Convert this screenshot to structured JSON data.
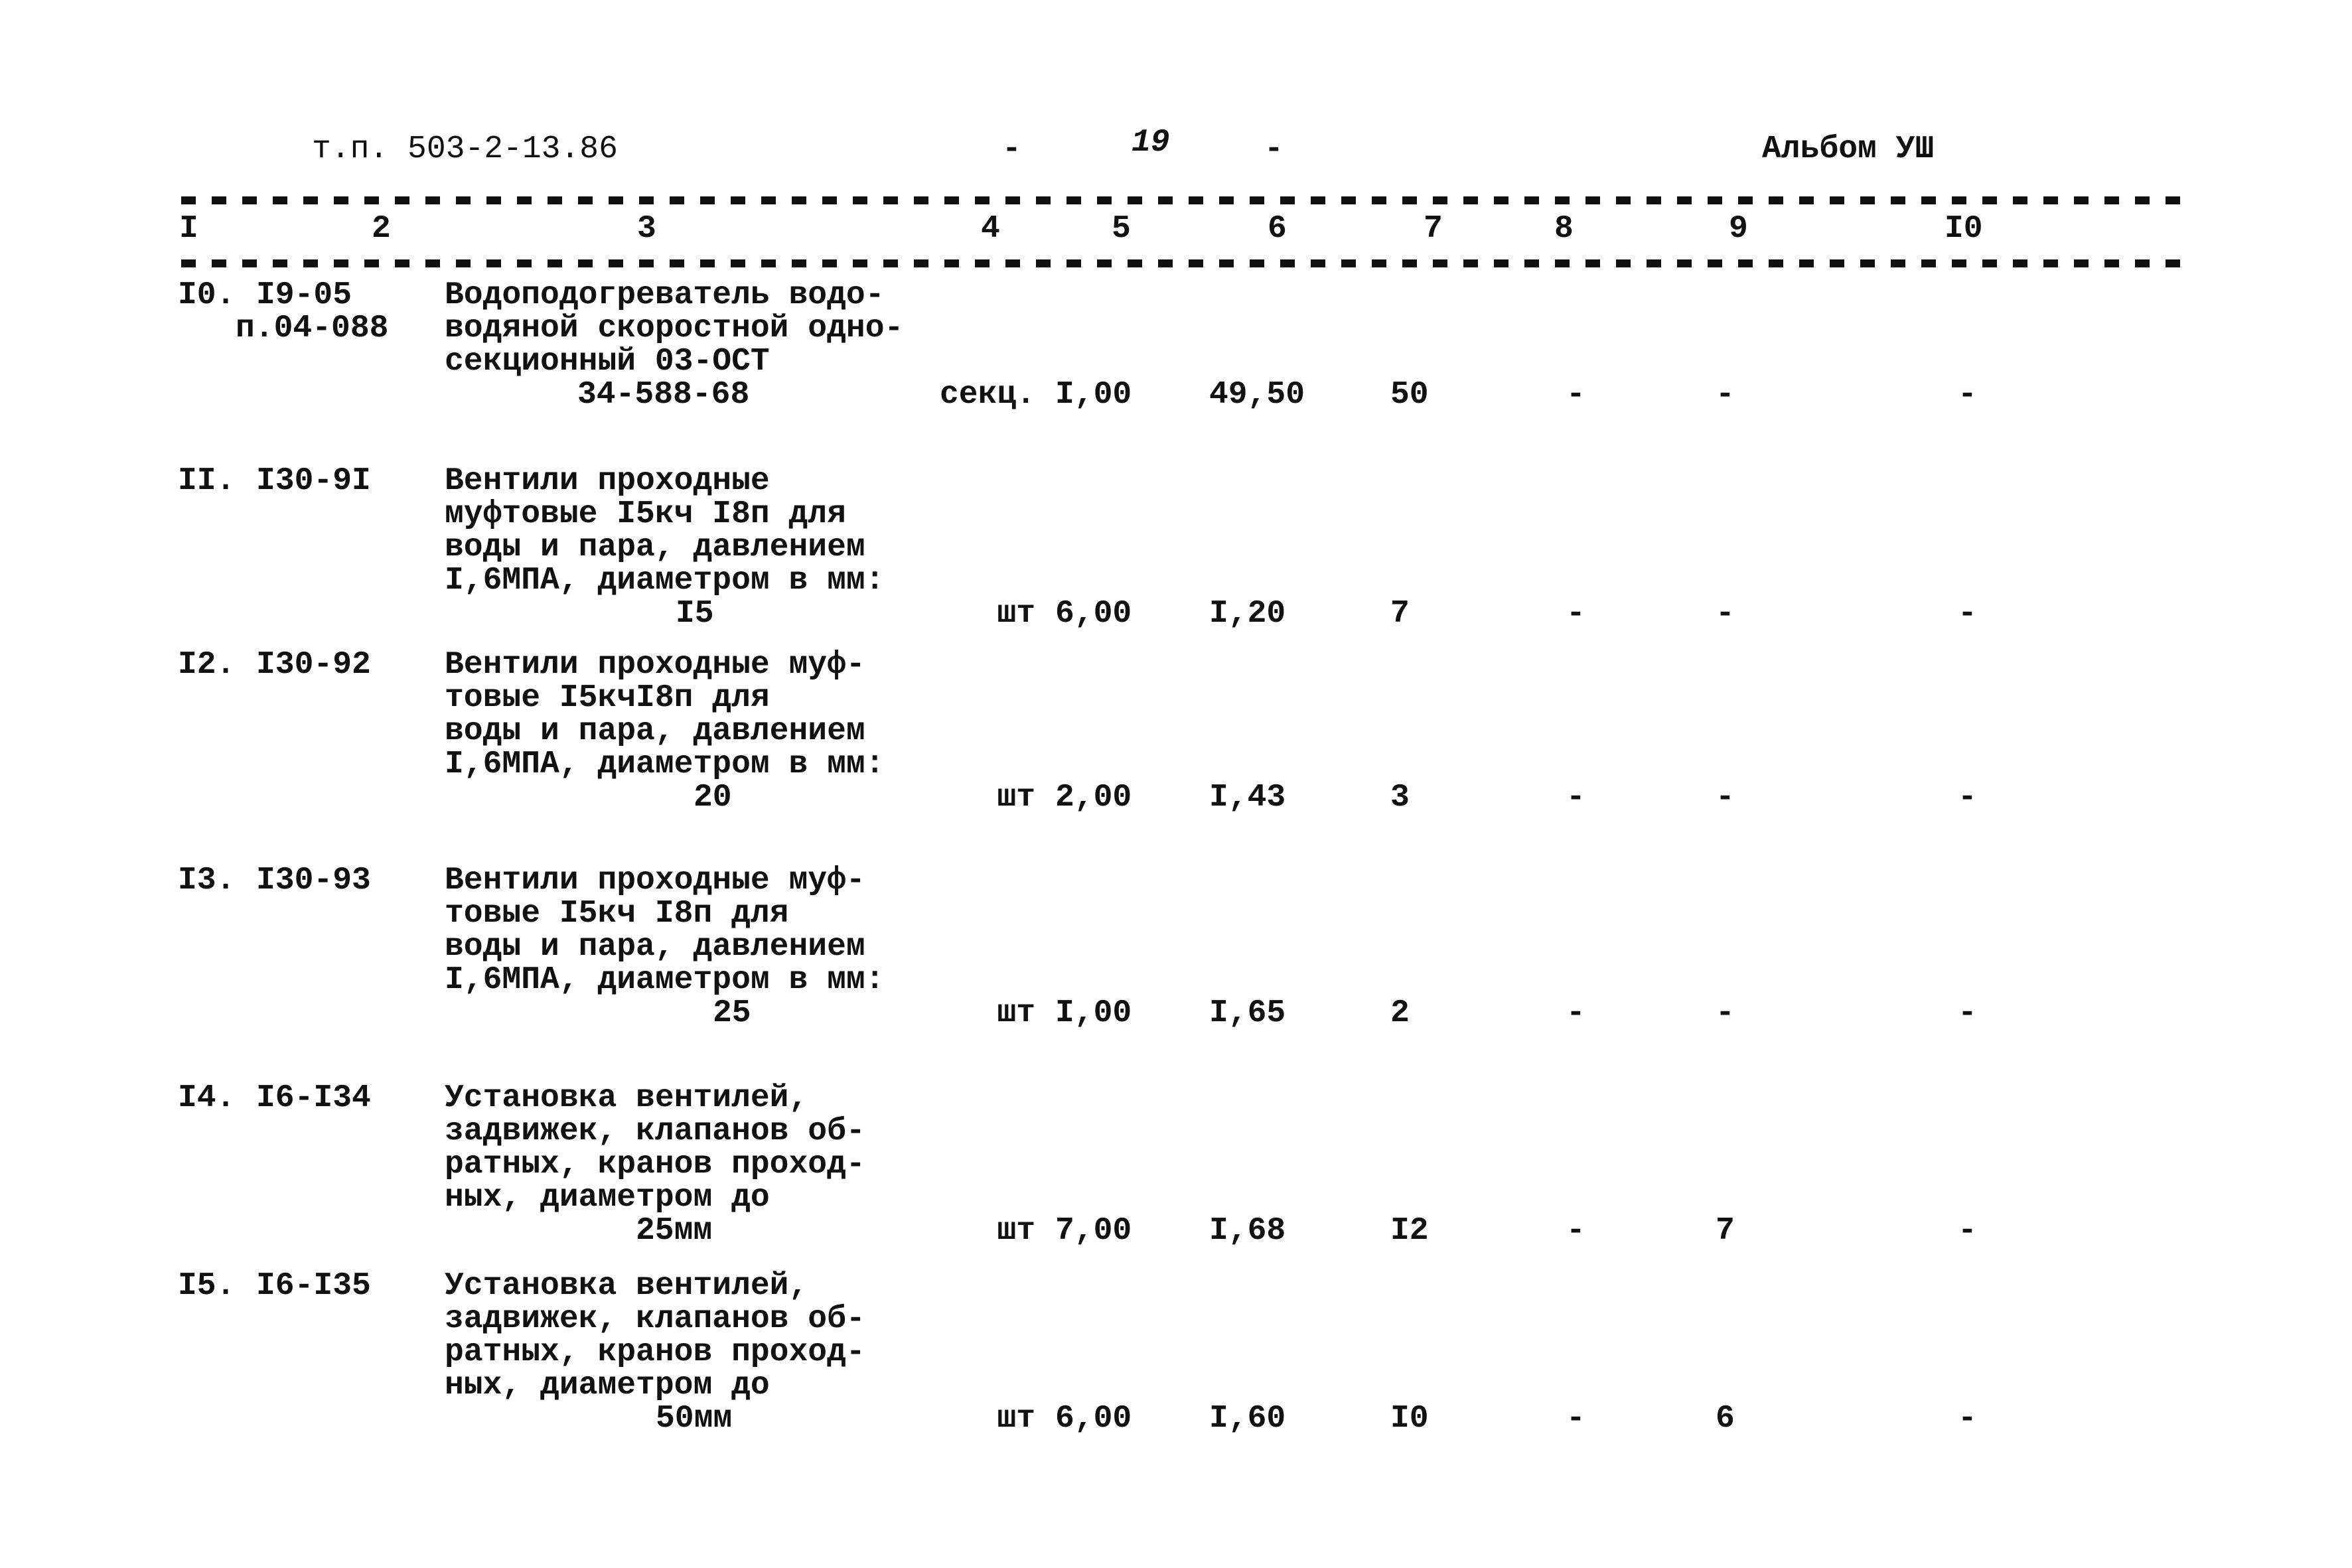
{
  "header": {
    "doc_code": "т.п. 503-2-13.86",
    "dash_left": "-",
    "page_number": "19",
    "dash_right": "-",
    "album": "Альбом УШ"
  },
  "columns": [
    "I",
    "2",
    "3",
    "4",
    "5",
    "6",
    "7",
    "8",
    "9",
    "I0"
  ],
  "rows": [
    {
      "num": "I0.",
      "code": [
        "I9-05",
        "п.04-088"
      ],
      "desc": [
        "Водоподогреватель водо-",
        "водяной скоростной одно-",
        "секционный 03-ОСТ"
      ],
      "tail": "34-588-68",
      "unit": "секц.",
      "qty": "I,00",
      "price": "49,50",
      "c7": "50",
      "c8": "-",
      "c9": "-",
      "c10": "-"
    },
    {
      "num": "II.",
      "code": [
        "I30-9I"
      ],
      "desc": [
        "Вентили проходные",
        "муфтовые I5кч I8п для",
        "воды и пара, давлением",
        "I,6МПА, диаметром в мм:"
      ],
      "tail": "I5",
      "unit": "шт",
      "qty": "6,00",
      "price": "I,20",
      "c7": "7",
      "c8": "-",
      "c9": "-",
      "c10": "-"
    },
    {
      "num": "I2.",
      "code": [
        "I30-92"
      ],
      "desc": [
        "Вентили проходные муф-",
        "товые I5кчI8п для",
        "воды и пара, давлением",
        "I,6МПА, диаметром в мм:"
      ],
      "tail": "20",
      "unit": "шт",
      "qty": "2,00",
      "price": "I,43",
      "c7": "3",
      "c8": "-",
      "c9": "-",
      "c10": "-"
    },
    {
      "num": "I3.",
      "code": [
        "I30-93"
      ],
      "desc": [
        "Вентили проходные муф-",
        "товые I5кч I8п для",
        "воды и пара, давлением",
        "I,6МПА, диаметром в мм:"
      ],
      "tail": "25",
      "unit": "шт",
      "qty": "I,00",
      "price": "I,65",
      "c7": "2",
      "c8": "-",
      "c9": "-",
      "c10": "-"
    },
    {
      "num": "I4.",
      "code": [
        "I6-I34"
      ],
      "desc": [
        "Установка вентилей,",
        "задвижек, клапанов об-",
        "ратных, кранов проход-",
        "ных, диаметром до"
      ],
      "tail": "25мм",
      "unit": "шт",
      "qty": "7,00",
      "price": "I,68",
      "c7": "I2",
      "c8": "-",
      "c9": "7",
      "c10": "-"
    },
    {
      "num": "I5.",
      "code": [
        "I6-I35"
      ],
      "desc": [
        "Установка вентилей,",
        "задвижек, клапанов об-",
        "ратных, кранов проход-",
        "ных, диаметром до"
      ],
      "tail": "50мм",
      "unit": "шт",
      "qty": "6,00",
      "price": "I,60",
      "c7": "I0",
      "c8": "-",
      "c9": "6",
      "c10": "-"
    }
  ]
}
